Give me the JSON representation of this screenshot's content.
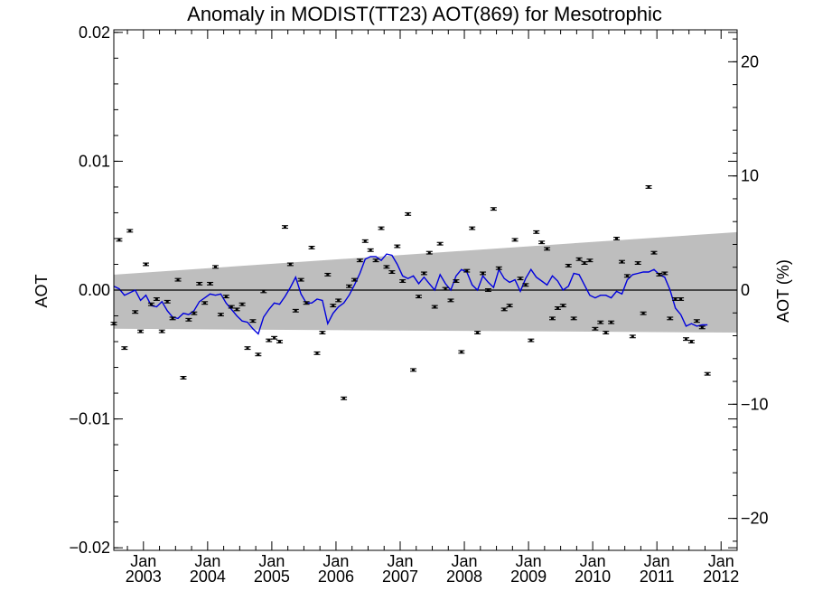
{
  "chart_data": {
    "type": "scatter",
    "title": "Anomaly in MODIST(TT23) AOT(869) for Mesotrophic",
    "ylabel": "AOT",
    "y2label": "AOT (%)",
    "xlabel": "",
    "x_tick_labels": [
      {
        "month": "Jan",
        "year": "2003"
      },
      {
        "month": "Jan",
        "year": "2004"
      },
      {
        "month": "Jan",
        "year": "2005"
      },
      {
        "month": "Jan",
        "year": "2006"
      },
      {
        "month": "Jan",
        "year": "2007"
      },
      {
        "month": "Jan",
        "year": "2008"
      },
      {
        "month": "Jan",
        "year": "2009"
      },
      {
        "month": "Jan",
        "year": "2010"
      },
      {
        "month": "Jan",
        "year": "2011"
      },
      {
        "month": "Jan",
        "year": "2012"
      }
    ],
    "y_tick_labels": [
      "0.02",
      "0.01",
      "0.00",
      "−0.01",
      "−0.02"
    ],
    "y2_tick_labels": [
      "20",
      "10",
      "0",
      "−10",
      "−20"
    ],
    "ylim": [
      -0.0202,
      0.0202
    ],
    "y2lim": [
      -22.8,
      22.8
    ],
    "xlim": [
      "2002-07-15",
      "2012-04-01"
    ],
    "band": {
      "color": "#bebebe",
      "upper": [
        {
          "x": "2002-07-15",
          "y": 0.0012
        },
        {
          "x": "2012-04-01",
          "y": 0.0045
        }
      ],
      "lower": [
        {
          "x": "2002-07-15",
          "y": -0.003
        },
        {
          "x": "2012-04-01",
          "y": -0.0033
        }
      ]
    },
    "zero_line": 0,
    "colors": {
      "line": "#0000dd",
      "points": "#000000",
      "band": "#bebebe"
    },
    "series": [
      {
        "kind": "points",
        "values": [
          {
            "x": "2002-07-15",
            "y": -0.0026
          },
          {
            "x": "2002-08-15",
            "y": 0.0039
          },
          {
            "x": "2002-09-15",
            "y": -0.0045
          },
          {
            "x": "2002-10-15",
            "y": 0.0046
          },
          {
            "x": "2002-11-15",
            "y": -0.0017
          },
          {
            "x": "2002-12-15",
            "y": -0.0032
          },
          {
            "x": "2003-01-15",
            "y": 0.002
          },
          {
            "x": "2003-02-15",
            "y": -0.0011
          },
          {
            "x": "2003-03-15",
            "y": -0.0007
          },
          {
            "x": "2003-04-15",
            "y": -0.0032
          },
          {
            "x": "2003-05-15",
            "y": -0.0009
          },
          {
            "x": "2003-06-15",
            "y": -0.0022
          },
          {
            "x": "2003-07-15",
            "y": 0.0008
          },
          {
            "x": "2003-08-15",
            "y": -0.0068
          },
          {
            "x": "2003-09-15",
            "y": -0.0023
          },
          {
            "x": "2003-10-15",
            "y": -0.0018
          },
          {
            "x": "2003-11-15",
            "y": 0.0005
          },
          {
            "x": "2003-12-15",
            "y": -0.001
          },
          {
            "x": "2004-01-15",
            "y": 0.0005
          },
          {
            "x": "2004-02-15",
            "y": 0.0018
          },
          {
            "x": "2004-03-15",
            "y": -0.0019
          },
          {
            "x": "2004-04-15",
            "y": -0.0005
          },
          {
            "x": "2004-05-15",
            "y": -0.0013
          },
          {
            "x": "2004-06-15",
            "y": -0.0015
          },
          {
            "x": "2004-07-15",
            "y": -0.0011
          },
          {
            "x": "2004-08-15",
            "y": -0.0045
          },
          {
            "x": "2004-09-15",
            "y": -0.0024
          },
          {
            "x": "2004-10-15",
            "y": -0.005
          },
          {
            "x": "2004-11-15",
            "y": -0.0001
          },
          {
            "x": "2004-12-15",
            "y": -0.0039
          },
          {
            "x": "2005-01-15",
            "y": -0.0037
          },
          {
            "x": "2005-02-15",
            "y": -0.004
          },
          {
            "x": "2005-03-15",
            "y": 0.0049
          },
          {
            "x": "2005-04-15",
            "y": 0.002
          },
          {
            "x": "2005-05-15",
            "y": -0.0016
          },
          {
            "x": "2005-06-15",
            "y": 0.0008
          },
          {
            "x": "2005-07-15",
            "y": -0.001
          },
          {
            "x": "2005-08-15",
            "y": 0.0033
          },
          {
            "x": "2005-09-15",
            "y": -0.0049
          },
          {
            "x": "2005-10-15",
            "y": -0.0033
          },
          {
            "x": "2005-11-15",
            "y": 0.0012
          },
          {
            "x": "2005-12-15",
            "y": -0.0012
          },
          {
            "x": "2006-01-15",
            "y": -0.0008
          },
          {
            "x": "2006-02-15",
            "y": -0.0084
          },
          {
            "x": "2006-03-15",
            "y": 0.0003
          },
          {
            "x": "2006-04-15",
            "y": 0.0008
          },
          {
            "x": "2006-05-15",
            "y": 0.0023
          },
          {
            "x": "2006-06-15",
            "y": 0.0038
          },
          {
            "x": "2006-07-15",
            "y": 0.0031
          },
          {
            "x": "2006-08-15",
            "y": 0.0023
          },
          {
            "x": "2006-09-15",
            "y": 0.0048
          },
          {
            "x": "2006-10-15",
            "y": 0.0018
          },
          {
            "x": "2006-11-15",
            "y": 0.0014
          },
          {
            "x": "2006-12-15",
            "y": 0.0034
          },
          {
            "x": "2007-01-15",
            "y": 0.0007
          },
          {
            "x": "2007-02-15",
            "y": 0.0059
          },
          {
            "x": "2007-03-15",
            "y": -0.0062
          },
          {
            "x": "2007-04-15",
            "y": -0.0005
          },
          {
            "x": "2007-05-15",
            "y": 0.0013
          },
          {
            "x": "2007-06-15",
            "y": 0.0029
          },
          {
            "x": "2007-07-15",
            "y": -0.0013
          },
          {
            "x": "2007-08-15",
            "y": 0.0036
          },
          {
            "x": "2007-09-15",
            "y": 0.0001
          },
          {
            "x": "2007-10-15",
            "y": -0.0008
          },
          {
            "x": "2007-11-15",
            "y": 0.0007
          },
          {
            "x": "2007-12-15",
            "y": -0.0048
          },
          {
            "x": "2008-01-15",
            "y": 0.0015
          },
          {
            "x": "2008-02-15",
            "y": 0.0048
          },
          {
            "x": "2008-03-15",
            "y": -0.0033
          },
          {
            "x": "2008-04-15",
            "y": 0.0013
          },
          {
            "x": "2008-05-15",
            "y": 0.0
          },
          {
            "x": "2008-06-15",
            "y": 0.0063
          },
          {
            "x": "2008-07-15",
            "y": 0.0017
          },
          {
            "x": "2008-08-15",
            "y": -0.0015
          },
          {
            "x": "2008-09-15",
            "y": -0.0012
          },
          {
            "x": "2008-10-15",
            "y": 0.0039
          },
          {
            "x": "2008-11-15",
            "y": 0.0009
          },
          {
            "x": "2008-12-15",
            "y": 0.0004
          },
          {
            "x": "2009-01-15",
            "y": -0.0039
          },
          {
            "x": "2009-02-15",
            "y": 0.0045
          },
          {
            "x": "2009-03-15",
            "y": 0.0037
          },
          {
            "x": "2009-04-15",
            "y": 0.0032
          },
          {
            "x": "2009-05-15",
            "y": -0.0022
          },
          {
            "x": "2009-06-15",
            "y": -0.0014
          },
          {
            "x": "2009-07-15",
            "y": -0.0012
          },
          {
            "x": "2009-08-15",
            "y": 0.0019
          },
          {
            "x": "2009-09-15",
            "y": -0.0022
          },
          {
            "x": "2009-10-15",
            "y": 0.0024
          },
          {
            "x": "2009-11-15",
            "y": 0.0021
          },
          {
            "x": "2009-12-15",
            "y": 0.0023
          },
          {
            "x": "2010-01-15",
            "y": -0.003
          },
          {
            "x": "2010-02-15",
            "y": -0.0025
          },
          {
            "x": "2010-03-15",
            "y": -0.0033
          },
          {
            "x": "2010-04-15",
            "y": -0.0025
          },
          {
            "x": "2010-05-15",
            "y": 0.004
          },
          {
            "x": "2010-06-15",
            "y": 0.0022
          },
          {
            "x": "2010-07-15",
            "y": 0.0011
          },
          {
            "x": "2010-08-15",
            "y": -0.0036
          },
          {
            "x": "2010-09-15",
            "y": 0.0021
          },
          {
            "x": "2010-10-15",
            "y": -0.0018
          },
          {
            "x": "2010-11-15",
            "y": 0.008
          },
          {
            "x": "2010-12-15",
            "y": 0.0029
          },
          {
            "x": "2011-01-15",
            "y": 0.0012
          },
          {
            "x": "2011-02-15",
            "y": 0.0013
          },
          {
            "x": "2011-03-15",
            "y": -0.0022
          },
          {
            "x": "2011-04-15",
            "y": -0.0007
          },
          {
            "x": "2011-05-15",
            "y": -0.0007
          },
          {
            "x": "2011-06-15",
            "y": -0.0038
          },
          {
            "x": "2011-07-15",
            "y": -0.004
          },
          {
            "x": "2011-08-15",
            "y": -0.0024
          },
          {
            "x": "2011-09-15",
            "y": -0.0029
          },
          {
            "x": "2011-10-15",
            "y": -0.0065
          }
        ]
      },
      {
        "kind": "line",
        "values": [
          {
            "x": "2002-07-15",
            "y": 0.0003
          },
          {
            "x": "2002-08-15",
            "y": 0.0001
          },
          {
            "x": "2002-09-15",
            "y": -0.0004
          },
          {
            "x": "2002-10-15",
            "y": -0.0002
          },
          {
            "x": "2002-11-15",
            "y": 0.0
          },
          {
            "x": "2002-12-15",
            "y": -0.0008
          },
          {
            "x": "2003-01-15",
            "y": -0.0004
          },
          {
            "x": "2003-02-15",
            "y": -0.0012
          },
          {
            "x": "2003-03-15",
            "y": -0.0013
          },
          {
            "x": "2003-04-15",
            "y": -0.0009
          },
          {
            "x": "2003-05-15",
            "y": -0.0016
          },
          {
            "x": "2003-06-15",
            "y": -0.0021
          },
          {
            "x": "2003-07-15",
            "y": -0.0022
          },
          {
            "x": "2003-08-15",
            "y": -0.0018
          },
          {
            "x": "2003-09-15",
            "y": -0.0019
          },
          {
            "x": "2003-10-15",
            "y": -0.0016
          },
          {
            "x": "2003-11-15",
            "y": -0.0009
          },
          {
            "x": "2003-12-15",
            "y": -0.0006
          },
          {
            "x": "2004-01-15",
            "y": -0.0003
          },
          {
            "x": "2004-02-15",
            "y": -0.0004
          },
          {
            "x": "2004-03-15",
            "y": -0.0003
          },
          {
            "x": "2004-04-15",
            "y": -0.001
          },
          {
            "x": "2004-05-15",
            "y": -0.0015
          },
          {
            "x": "2004-06-15",
            "y": -0.002
          },
          {
            "x": "2004-07-15",
            "y": -0.0024
          },
          {
            "x": "2004-08-15",
            "y": -0.0025
          },
          {
            "x": "2004-09-15",
            "y": -0.003
          },
          {
            "x": "2004-10-15",
            "y": -0.0034
          },
          {
            "x": "2004-11-15",
            "y": -0.0021
          },
          {
            "x": "2004-12-15",
            "y": -0.0015
          },
          {
            "x": "2005-01-15",
            "y": -0.001
          },
          {
            "x": "2005-02-15",
            "y": -0.0011
          },
          {
            "x": "2005-03-15",
            "y": -0.0005
          },
          {
            "x": "2005-04-15",
            "y": 0.0002
          },
          {
            "x": "2005-05-15",
            "y": 0.001
          },
          {
            "x": "2005-06-15",
            "y": -0.0003
          },
          {
            "x": "2005-07-15",
            "y": -0.001
          },
          {
            "x": "2005-08-15",
            "y": -0.001
          },
          {
            "x": "2005-09-15",
            "y": -0.0007
          },
          {
            "x": "2005-10-15",
            "y": -0.0008
          },
          {
            "x": "2005-11-15",
            "y": -0.0026
          },
          {
            "x": "2005-12-15",
            "y": -0.0018
          },
          {
            "x": "2006-01-15",
            "y": -0.0013
          },
          {
            "x": "2006-02-15",
            "y": -0.001
          },
          {
            "x": "2006-03-15",
            "y": -0.0004
          },
          {
            "x": "2006-04-15",
            "y": 0.0004
          },
          {
            "x": "2006-05-15",
            "y": 0.0013
          },
          {
            "x": "2006-06-15",
            "y": 0.0024
          },
          {
            "x": "2006-07-15",
            "y": 0.0026
          },
          {
            "x": "2006-08-15",
            "y": 0.0026
          },
          {
            "x": "2006-09-15",
            "y": 0.0023
          },
          {
            "x": "2006-10-15",
            "y": 0.0028
          },
          {
            "x": "2006-11-15",
            "y": 0.0027
          },
          {
            "x": "2006-12-15",
            "y": 0.002
          },
          {
            "x": "2007-01-15",
            "y": 0.0011
          },
          {
            "x": "2007-02-15",
            "y": 0.0009
          },
          {
            "x": "2007-03-15",
            "y": 0.0011
          },
          {
            "x": "2007-04-15",
            "y": 0.0005
          },
          {
            "x": "2007-05-15",
            "y": 0.001
          },
          {
            "x": "2007-06-15",
            "y": 0.0005
          },
          {
            "x": "2007-07-15",
            "y": 0.0
          },
          {
            "x": "2007-08-15",
            "y": 0.0012
          },
          {
            "x": "2007-09-15",
            "y": 0.0005
          },
          {
            "x": "2007-10-15",
            "y": 0.0
          },
          {
            "x": "2007-11-15",
            "y": 0.0011
          },
          {
            "x": "2007-12-15",
            "y": 0.0016
          },
          {
            "x": "2008-01-15",
            "y": 0.0014
          },
          {
            "x": "2008-02-15",
            "y": 0.0004
          },
          {
            "x": "2008-03-15",
            "y": 0.0
          },
          {
            "x": "2008-04-15",
            "y": 0.0011
          },
          {
            "x": "2008-05-15",
            "y": 0.0006
          },
          {
            "x": "2008-06-15",
            "y": 0.0002
          },
          {
            "x": "2008-07-15",
            "y": 0.0016
          },
          {
            "x": "2008-08-15",
            "y": 0.0009
          },
          {
            "x": "2008-09-15",
            "y": 0.0006
          },
          {
            "x": "2008-10-15",
            "y": 0.0008
          },
          {
            "x": "2008-11-15",
            "y": -0.0001
          },
          {
            "x": "2008-12-15",
            "y": 0.0009
          },
          {
            "x": "2009-01-15",
            "y": 0.0016
          },
          {
            "x": "2009-02-15",
            "y": 0.001
          },
          {
            "x": "2009-03-15",
            "y": 0.0007
          },
          {
            "x": "2009-04-15",
            "y": 0.0004
          },
          {
            "x": "2009-05-15",
            "y": 0.0011
          },
          {
            "x": "2009-06-15",
            "y": 0.0007
          },
          {
            "x": "2009-07-15",
            "y": 0.0
          },
          {
            "x": "2009-08-15",
            "y": 0.0003
          },
          {
            "x": "2009-09-15",
            "y": 0.0013
          },
          {
            "x": "2009-10-15",
            "y": 0.0012
          },
          {
            "x": "2009-11-15",
            "y": 0.0004
          },
          {
            "x": "2009-12-15",
            "y": -0.0004
          },
          {
            "x": "2010-01-15",
            "y": -0.0006
          },
          {
            "x": "2010-02-15",
            "y": -0.0004
          },
          {
            "x": "2010-03-15",
            "y": -0.0004
          },
          {
            "x": "2010-04-15",
            "y": -0.0006
          },
          {
            "x": "2010-05-15",
            "y": -0.0001
          },
          {
            "x": "2010-06-15",
            "y": -0.0003
          },
          {
            "x": "2010-07-15",
            "y": 0.0008
          },
          {
            "x": "2010-08-15",
            "y": 0.0012
          },
          {
            "x": "2010-09-15",
            "y": 0.0013
          },
          {
            "x": "2010-10-15",
            "y": 0.0014
          },
          {
            "x": "2010-11-15",
            "y": 0.0014
          },
          {
            "x": "2010-12-15",
            "y": 0.0016
          },
          {
            "x": "2011-01-15",
            "y": 0.0012
          },
          {
            "x": "2011-02-15",
            "y": 0.001
          },
          {
            "x": "2011-03-15",
            "y": 0.0
          },
          {
            "x": "2011-04-15",
            "y": -0.0014
          },
          {
            "x": "2011-05-15",
            "y": -0.0019
          },
          {
            "x": "2011-06-15",
            "y": -0.0028
          },
          {
            "x": "2011-07-15",
            "y": -0.0026
          },
          {
            "x": "2011-08-15",
            "y": -0.0028
          },
          {
            "x": "2011-09-15",
            "y": -0.0027
          },
          {
            "x": "2011-10-15",
            "y": -0.0027
          }
        ]
      }
    ]
  }
}
